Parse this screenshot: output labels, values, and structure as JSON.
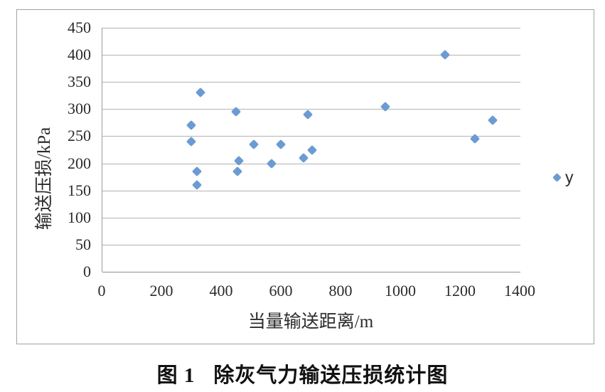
{
  "figure": {
    "caption_label": "图 1",
    "caption_title": "除灰气力输送压损统计图"
  },
  "legend": {
    "label": "y"
  },
  "chart_data": {
    "type": "scatter",
    "title": "",
    "xlabel": "当量输送距离/m",
    "ylabel": "输送压损/kPa",
    "xlim": [
      0,
      1400
    ],
    "ylim": [
      0,
      450
    ],
    "x_ticks": [
      0,
      200,
      400,
      600,
      800,
      1000,
      1200,
      1400
    ],
    "y_ticks": [
      0,
      50,
      100,
      150,
      200,
      250,
      300,
      350,
      400,
      450
    ],
    "grid": "horizontal-only",
    "legend_position": "right",
    "series": [
      {
        "name": "y",
        "marker": "diamond",
        "color": "#6b9bd2",
        "points": [
          {
            "x": 300,
            "y": 270
          },
          {
            "x": 300,
            "y": 240
          },
          {
            "x": 320,
            "y": 185
          },
          {
            "x": 320,
            "y": 160
          },
          {
            "x": 330,
            "y": 330
          },
          {
            "x": 450,
            "y": 295
          },
          {
            "x": 455,
            "y": 185
          },
          {
            "x": 460,
            "y": 205
          },
          {
            "x": 510,
            "y": 235
          },
          {
            "x": 570,
            "y": 200
          },
          {
            "x": 600,
            "y": 235
          },
          {
            "x": 675,
            "y": 210
          },
          {
            "x": 690,
            "y": 290
          },
          {
            "x": 705,
            "y": 225
          },
          {
            "x": 950,
            "y": 305
          },
          {
            "x": 1150,
            "y": 400
          },
          {
            "x": 1250,
            "y": 245
          },
          {
            "x": 1310,
            "y": 280
          }
        ]
      }
    ],
    "colors": {
      "marker": "#6b9bd2",
      "gridline": "#b3b3b3",
      "axis": "#8f8f8f",
      "frame": "#a3a3a3",
      "text": "#2b2b2b"
    }
  }
}
